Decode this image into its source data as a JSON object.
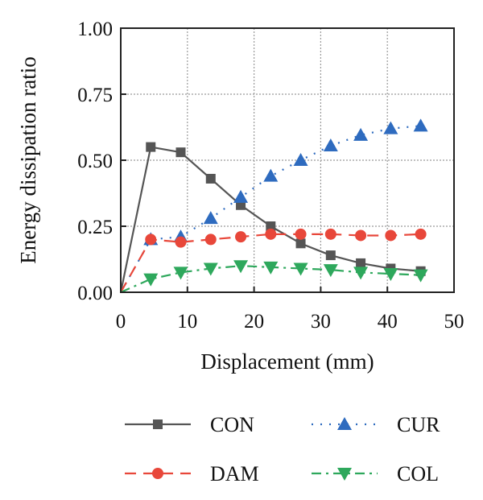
{
  "chart_data": {
    "type": "line",
    "xlabel": "Displacement (mm)",
    "ylabel": "Energy dissipation ratio",
    "xlim": [
      0,
      50
    ],
    "ylim": [
      0,
      1.0
    ],
    "x_ticks": [
      "0",
      "10",
      "20",
      "30",
      "40",
      "50"
    ],
    "y_ticks": [
      "0.00",
      "0.25",
      "0.50",
      "0.75",
      "1.00"
    ],
    "grid": true,
    "legend_placement": "bottom",
    "series": [
      {
        "name": "CON",
        "color": "#555555",
        "marker": "square",
        "line_style": "solid",
        "x": [
          0,
          4.5,
          9,
          13.5,
          18,
          22.5,
          27,
          31.5,
          36,
          40.5,
          45
        ],
        "y": [
          0,
          0.55,
          0.53,
          0.43,
          0.33,
          0.25,
          0.185,
          0.14,
          0.11,
          0.09,
          0.08
        ]
      },
      {
        "name": "CUR",
        "color": "#2e6bbf",
        "marker": "triangle-up",
        "line_style": "dotted",
        "x": [
          0,
          4.5,
          9,
          13.5,
          18,
          22.5,
          27,
          31.5,
          36,
          40.5,
          45
        ],
        "y": [
          0,
          0.2,
          0.21,
          0.28,
          0.36,
          0.44,
          0.5,
          0.555,
          0.595,
          0.62,
          0.63
        ]
      },
      {
        "name": "DAM",
        "color": "#e8473a",
        "marker": "circle",
        "line_style": "dashed",
        "x": [
          0,
          4.5,
          9,
          13.5,
          18,
          22.5,
          27,
          31.5,
          36,
          40.5,
          45
        ],
        "y": [
          0,
          0.2,
          0.19,
          0.2,
          0.21,
          0.22,
          0.22,
          0.22,
          0.215,
          0.215,
          0.22
        ]
      },
      {
        "name": "COL",
        "color": "#2ea85c",
        "marker": "triangle-down",
        "line_style": "dashdot",
        "x": [
          0,
          4.5,
          9,
          13.5,
          18,
          22.5,
          27,
          31.5,
          36,
          40.5,
          45
        ],
        "y": [
          0,
          0.05,
          0.075,
          0.09,
          0.1,
          0.095,
          0.09,
          0.085,
          0.075,
          0.07,
          0.065
        ]
      }
    ]
  }
}
